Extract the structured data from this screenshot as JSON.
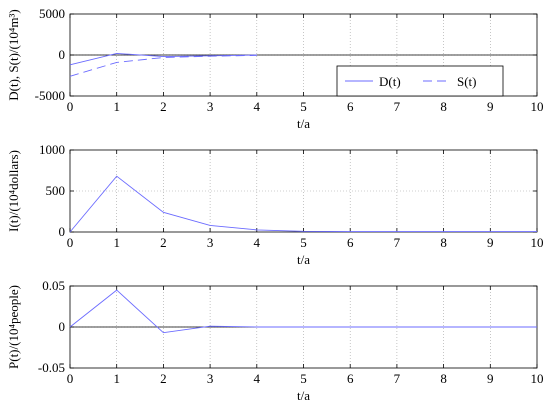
{
  "chart_data": [
    {
      "type": "line",
      "xlabel": "t/a",
      "ylabel": "D(t), S(t)/(10⁴m³)",
      "xlim": [
        0,
        10
      ],
      "ylim": [
        -5000,
        5000
      ],
      "x_ticks": [
        "0",
        "1",
        "2",
        "3",
        "4",
        "5",
        "6",
        "7",
        "8",
        "9",
        "10"
      ],
      "y_ticks": [
        "-5000",
        "0",
        "5000"
      ],
      "zero_line": true,
      "grid": "dotted",
      "legend": {
        "position": "right",
        "entries": [
          "D(t)",
          "S(t)"
        ]
      },
      "series": [
        {
          "name": "D(t)",
          "style": "solid",
          "x": [
            0,
            1,
            2,
            3,
            4
          ],
          "y": [
            -1200,
            200,
            -200,
            -100,
            0
          ]
        },
        {
          "name": "S(t)",
          "style": "dashed",
          "x": [
            0,
            1,
            2,
            3,
            4
          ],
          "y": [
            -2600,
            -900,
            -300,
            -150,
            -50
          ]
        }
      ]
    },
    {
      "type": "line",
      "xlabel": "t/a",
      "ylabel": "I(t)/(10⁴dollars)",
      "xlim": [
        0,
        10
      ],
      "ylim": [
        0,
        1000
      ],
      "x_ticks": [
        "0",
        "1",
        "2",
        "3",
        "4",
        "5",
        "6",
        "7",
        "8",
        "9",
        "10"
      ],
      "y_ticks": [
        "0",
        "500",
        "1000"
      ],
      "zero_line": false,
      "grid": "dotted",
      "series": [
        {
          "style": "solid",
          "x": [
            0,
            1,
            2,
            3,
            4,
            5,
            6,
            7,
            8,
            9,
            10
          ],
          "y": [
            0,
            680,
            240,
            80,
            25,
            8,
            5,
            5,
            5,
            5,
            5
          ]
        }
      ]
    },
    {
      "type": "line",
      "xlabel": "t/a",
      "ylabel": "P(t)/(10⁴people)",
      "xlim": [
        0,
        10
      ],
      "ylim": [
        -0.05,
        0.05
      ],
      "x_ticks": [
        "0",
        "1",
        "2",
        "3",
        "4",
        "5",
        "6",
        "7",
        "8",
        "9",
        "10"
      ],
      "y_ticks": [
        "-0.05",
        "0",
        "0.05"
      ],
      "zero_line": true,
      "grid": "dotted",
      "series": [
        {
          "style": "solid",
          "x": [
            0,
            1,
            2,
            3,
            4,
            5,
            6,
            7,
            8,
            9,
            10
          ],
          "y": [
            0,
            0.045,
            -0.007,
            0.001,
            0,
            0,
            0,
            0,
            0,
            0,
            0
          ]
        }
      ]
    }
  ],
  "colors": {
    "series": "#6b6bff",
    "axis": "#000000",
    "grid": "#a0a0a0",
    "zero_line": "#000000"
  }
}
